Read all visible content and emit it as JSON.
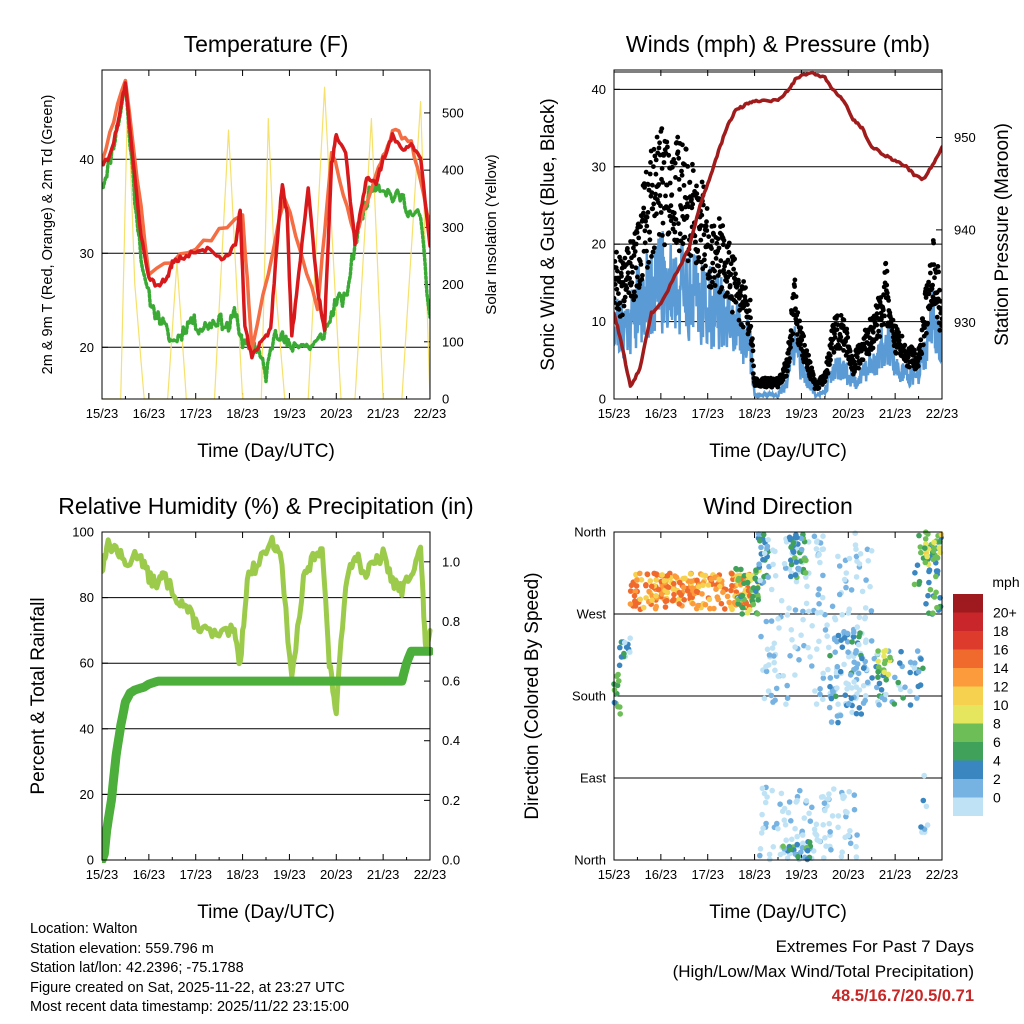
{
  "chart_data": [
    {
      "id": "temperature",
      "type": "line",
      "title": "Temperature (F)",
      "xlabel": "Time (Day/UTC)",
      "ylabel": "2m & 9m T (Red, Orange) & 2m Td (Green)",
      "y2label": "Solar Insolation (Yellow)",
      "ylim": [
        14.5,
        49.5
      ],
      "y2lim": [
        0,
        575
      ],
      "yticks": [
        20,
        30,
        40
      ],
      "y2ticks": [
        0,
        100,
        200,
        300,
        400,
        500
      ],
      "xlim": [
        0,
        7
      ],
      "xticks": [
        "15/23",
        "16/23",
        "17/23",
        "18/23",
        "19/23",
        "20/23",
        "21/23",
        "22/23"
      ],
      "colors": {
        "t2m": "#d7191c",
        "t9m": "#f46d43",
        "td": "#3aaa35",
        "solar": "#f5e16b"
      },
      "series": [
        {
          "name": "2m T",
          "color": "#d7191c",
          "x": [
            0,
            0.15,
            0.35,
            0.5,
            0.62,
            0.8,
            1.0,
            1.2,
            1.4,
            1.5,
            1.7,
            2.0,
            2.3,
            2.6,
            2.85,
            2.95,
            3.05,
            3.2,
            3.4,
            3.6,
            3.75,
            3.85,
            3.95,
            4.05,
            4.2,
            4.4,
            4.6,
            4.75,
            4.9,
            5.0,
            5.2,
            5.4,
            5.5,
            5.65,
            5.85,
            6.0,
            6.2,
            6.4,
            6.6,
            6.8,
            7.0
          ],
          "y": [
            39.5,
            40,
            44,
            48.2,
            42,
            33,
            27.5,
            26.5,
            27.5,
            29,
            29.5,
            30.2,
            30.5,
            29.2,
            31,
            34.5,
            22,
            19,
            20.5,
            22,
            32,
            37.5,
            34,
            21,
            28,
            37,
            26,
            22,
            39.5,
            42.5,
            40.5,
            31,
            34,
            38,
            37.5,
            40,
            42.5,
            41,
            41.5,
            40,
            31
          ]
        },
        {
          "name": "9m T",
          "color": "#f46d43",
          "x": [
            0,
            0.5,
            1.0,
            2.0,
            3.0,
            3.2,
            3.9,
            4.6,
            4.9,
            5.4,
            5.9,
            6.2,
            6.6,
            7.0
          ],
          "y": [
            39.8,
            48.5,
            28,
            30.5,
            34,
            20,
            36,
            24,
            41,
            32,
            39,
            43,
            42,
            33
          ]
        },
        {
          "name": "2m Td",
          "color": "#3aaa35",
          "x": [
            0,
            0.15,
            0.35,
            0.5,
            0.7,
            0.9,
            1.1,
            1.3,
            1.5,
            1.7,
            1.9,
            2.1,
            2.3,
            2.5,
            2.7,
            2.85,
            3.0,
            3.2,
            3.35,
            3.5,
            3.7,
            3.85,
            4.0,
            4.2,
            4.4,
            4.6,
            4.8,
            5.0,
            5.2,
            5.4,
            5.6,
            5.8,
            6.0,
            6.2,
            6.4,
            6.6,
            6.8,
            7.0
          ],
          "y": [
            37,
            39.5,
            44,
            47.8,
            36,
            27,
            24,
            22.5,
            20.5,
            21.5,
            23,
            22,
            22.5,
            23,
            22,
            24,
            20,
            20.5,
            19.5,
            17,
            22,
            21,
            20,
            20.5,
            20,
            20.5,
            22,
            25,
            25,
            31,
            35,
            37.5,
            37,
            36,
            36,
            34,
            34,
            22.5
          ]
        },
        {
          "name": "Solar Insolation",
          "color": "#f5e16b",
          "axis": "y2",
          "x": [
            0,
            0.4,
            0.55,
            0.7,
            0.9,
            1.0,
            1.4,
            1.6,
            1.8,
            2.0,
            2.4,
            2.7,
            3.0,
            3.4,
            3.55,
            3.7,
            3.9,
            4.4,
            4.75,
            4.9,
            5.1,
            5.4,
            5.75,
            6.0,
            6.4,
            6.8,
            7.0
          ],
          "y": [
            0,
            0,
            540,
            200,
            0,
            0,
            0,
            240,
            0,
            0,
            0,
            470,
            0,
            0,
            490,
            200,
            0,
            0,
            545,
            300,
            0,
            0,
            490,
            0,
            0,
            520,
            0
          ]
        }
      ]
    },
    {
      "id": "winds",
      "type": "line",
      "title": "Winds (mph) & Pressure (mb)",
      "xlabel": "Time (Day/UTC)",
      "ylabel": "Sonic Wind & Gust (Blue, Black)",
      "y2label": "Station Pressure (Maroon)",
      "ylim": [
        0,
        42.5
      ],
      "y2lim": [
        921.7,
        957.3
      ],
      "yticks": [
        0,
        10,
        20,
        30,
        40
      ],
      "y2ticks": [
        930,
        940,
        950
      ],
      "xlim": [
        0,
        7
      ],
      "xticks": [
        "15/23",
        "16/23",
        "17/23",
        "18/23",
        "19/23",
        "20/23",
        "21/23",
        "22/23"
      ],
      "colors": {
        "wind": "#5b9bd5",
        "gust": "#000000",
        "pressure": "#a01c1c"
      },
      "series": [
        {
          "name": "Sonic Wind",
          "color": "#5b9bd5",
          "x": [
            0,
            0.2,
            0.5,
            0.8,
            1.0,
            1.2,
            1.5,
            1.8,
            2.0,
            2.3,
            2.6,
            2.9,
            3.0,
            3.5,
            3.7,
            3.85,
            4.0,
            4.3,
            4.5,
            4.7,
            4.9,
            5.1,
            5.4,
            5.6,
            5.8,
            6.0,
            6.3,
            6.5,
            6.8,
            7.0
          ],
          "y": [
            10,
            9,
            12,
            14,
            15,
            15,
            14,
            13,
            12,
            11,
            9,
            7,
            0.5,
            0.5,
            2,
            8,
            4,
            0.5,
            1,
            4,
            4,
            2,
            4,
            5,
            8,
            4,
            3,
            3,
            10,
            6
          ]
        },
        {
          "name": "Gust",
          "color": "#000000",
          "x": [
            0,
            0.2,
            0.5,
            0.8,
            1.0,
            1.2,
            1.5,
            1.8,
            2.0,
            2.3,
            2.6,
            2.9,
            3.0,
            3.5,
            3.7,
            3.85,
            4.0,
            4.3,
            4.5,
            4.7,
            4.9,
            5.1,
            5.4,
            5.6,
            5.8,
            6.0,
            6.3,
            6.5,
            6.8,
            7.0
          ],
          "y": [
            15,
            13,
            18,
            24,
            26,
            26,
            24,
            22,
            19,
            17,
            13,
            10,
            2,
            2,
            4,
            12,
            7,
            1.5,
            2.5,
            8,
            8,
            4,
            7,
            9,
            13,
            7,
            5,
            5,
            16,
            10
          ]
        },
        {
          "name": "Station Pressure",
          "color": "#a01c1c",
          "axis": "y2",
          "x": [
            0,
            0.15,
            0.35,
            0.55,
            0.8,
            1.0,
            1.3,
            1.6,
            1.8,
            2.0,
            2.2,
            2.4,
            2.6,
            2.8,
            3.0,
            3.2,
            3.5,
            3.7,
            3.9,
            4.2,
            4.5,
            4.7,
            4.9,
            5.1,
            5.3,
            5.5,
            5.8,
            6.0,
            6.2,
            6.4,
            6.6,
            6.8,
            7.0
          ],
          "y": [
            931,
            928,
            923,
            925,
            931,
            932,
            935,
            938,
            942,
            945,
            948,
            951,
            953,
            953.5,
            954,
            954,
            954,
            955,
            956.5,
            957,
            956.5,
            955,
            954,
            952,
            951,
            949,
            948,
            947.5,
            947,
            946,
            945.5,
            947,
            949
          ]
        }
      ]
    },
    {
      "id": "humidity",
      "type": "line",
      "title": "Relative Humidity (%) & Precipitation (in)",
      "xlabel": "Time (Day/UTC)",
      "ylabel": "Percent & Total Rainfall",
      "ylim": [
        0,
        100
      ],
      "y2lim": [
        0,
        1.1
      ],
      "yticks": [
        0,
        20,
        40,
        60,
        80,
        100
      ],
      "y2ticks": [
        "0.0",
        "0.2",
        "0.4",
        "0.6",
        "0.8",
        "1.0"
      ],
      "xlim": [
        0,
        7
      ],
      "xticks": [
        "15/23",
        "16/23",
        "17/23",
        "18/23",
        "19/23",
        "20/23",
        "21/23",
        "22/23"
      ],
      "colors": {
        "rh": "#9ccb4b",
        "precip": "#4cae3b"
      },
      "series": [
        {
          "name": "Relative Humidity",
          "color": "#9ccb4b",
          "x": [
            0,
            0.1,
            0.3,
            0.5,
            0.8,
            1.0,
            1.2,
            1.3,
            1.6,
            1.8,
            2.0,
            2.2,
            2.5,
            2.8,
            2.95,
            3.1,
            3.3,
            3.6,
            3.8,
            4.05,
            4.3,
            4.5,
            4.7,
            4.85,
            5.0,
            5.2,
            5.4,
            5.6,
            5.8,
            6.0,
            6.2,
            6.4,
            6.6,
            6.8,
            6.9,
            7.0
          ],
          "y": [
            88,
            96,
            95,
            90,
            94,
            86,
            84,
            87,
            80,
            77,
            72,
            70,
            68,
            70,
            60,
            86,
            90,
            97,
            95,
            55,
            85,
            92,
            96,
            60,
            45,
            85,
            94,
            87,
            90,
            93,
            85,
            82,
            88,
            95,
            65,
            68
          ]
        },
        {
          "name": "Total Rainfall",
          "color": "#4cae3b",
          "axis": "y2",
          "x": [
            0,
            0.05,
            0.1,
            0.2,
            0.3,
            0.4,
            0.5,
            0.6,
            0.7,
            0.9,
            1.0,
            1.2,
            1.5,
            2.0,
            3.0,
            4.0,
            5.0,
            6.0,
            6.4,
            6.5,
            6.6,
            7.0
          ],
          "y": [
            0,
            0.02,
            0.1,
            0.2,
            0.35,
            0.45,
            0.53,
            0.56,
            0.57,
            0.58,
            0.59,
            0.6,
            0.6,
            0.6,
            0.6,
            0.6,
            0.6,
            0.6,
            0.6,
            0.66,
            0.7,
            0.7
          ]
        }
      ]
    },
    {
      "id": "direction",
      "type": "scatter",
      "title": "Wind Direction",
      "xlabel": "Time (Day/UTC)",
      "ylabel": "Direction (Colored By Speed)",
      "ylim": [
        0,
        360
      ],
      "yticks": [
        "North",
        "East",
        "South",
        "West",
        "North"
      ],
      "xlim": [
        0,
        7
      ],
      "xticks": [
        "15/23",
        "16/23",
        "17/23",
        "18/23",
        "19/23",
        "20/23",
        "21/23",
        "22/23"
      ],
      "legend": {
        "title": "mph",
        "labels": [
          "20+",
          "18",
          "16",
          "14",
          "12",
          "10",
          "8",
          "6",
          "4",
          "2",
          "0"
        ],
        "colors": [
          "#9e1a1f",
          "#c8262a",
          "#dd3c2c",
          "#f06a2d",
          "#fb9b3b",
          "#f6d14f",
          "#e6e65e",
          "#6ebe58",
          "#3fa15a",
          "#3a86c1",
          "#76b3e2",
          "#bfe3f5"
        ]
      },
      "clusters": [
        {
          "x0": 0.0,
          "x1": 0.15,
          "y0": 160,
          "y1": 205,
          "speed": 8,
          "n": 12
        },
        {
          "x0": 0.1,
          "x1": 0.35,
          "y0": 200,
          "y1": 250,
          "speed": 4,
          "n": 14
        },
        {
          "x0": 0.35,
          "x1": 2.9,
          "y0": 275,
          "y1": 315,
          "speed": 15,
          "n": 220
        },
        {
          "x0": 2.6,
          "x1": 3.1,
          "y0": 270,
          "y1": 320,
          "speed": 8,
          "n": 40
        },
        {
          "x0": 3.0,
          "x1": 3.3,
          "y0": 300,
          "y1": 360,
          "speed": 5,
          "n": 25
        },
        {
          "x0": 3.1,
          "x1": 5.5,
          "y0": 170,
          "y1": 360,
          "speed": 1,
          "n": 200
        },
        {
          "x0": 3.7,
          "x1": 4.1,
          "y0": 310,
          "y1": 360,
          "speed": 6,
          "n": 35
        },
        {
          "x0": 3.1,
          "x1": 5.2,
          "y0": 0,
          "y1": 80,
          "speed": 1,
          "n": 110
        },
        {
          "x0": 3.6,
          "x1": 4.2,
          "y0": 0,
          "y1": 20,
          "speed": 6,
          "n": 25
        },
        {
          "x0": 4.6,
          "x1": 5.4,
          "y0": 150,
          "y1": 250,
          "speed": 4,
          "n": 60
        },
        {
          "x0": 5.5,
          "x1": 6.6,
          "y0": 170,
          "y1": 230,
          "speed": 4,
          "n": 50
        },
        {
          "x0": 5.6,
          "x1": 5.9,
          "y0": 200,
          "y1": 230,
          "speed": 9,
          "n": 15
        },
        {
          "x0": 6.4,
          "x1": 7.0,
          "y0": 270,
          "y1": 360,
          "speed": 7,
          "n": 45
        },
        {
          "x0": 6.6,
          "x1": 7.0,
          "y0": 320,
          "y1": 360,
          "speed": 10,
          "n": 20
        },
        {
          "x0": 6.5,
          "x1": 6.7,
          "y0": 20,
          "y1": 100,
          "speed": 2,
          "n": 8
        }
      ]
    }
  ],
  "station": {
    "location": "Location: Walton",
    "elevation": "Station elevation: 559.796 m",
    "latlon": "Station lat/lon: 42.2396; -75.1788",
    "created": "Figure created on Sat, 2025-11-22, at 23:27 UTC",
    "latest": "Most recent data timestamp: 2025/11/22 23:15:00"
  },
  "extremes": {
    "heading": "Extremes For Past 7 Days",
    "subheading": "(High/Low/Max Wind/Total Precipitation)",
    "values": "48.5/16.7/20.5/0.71"
  }
}
